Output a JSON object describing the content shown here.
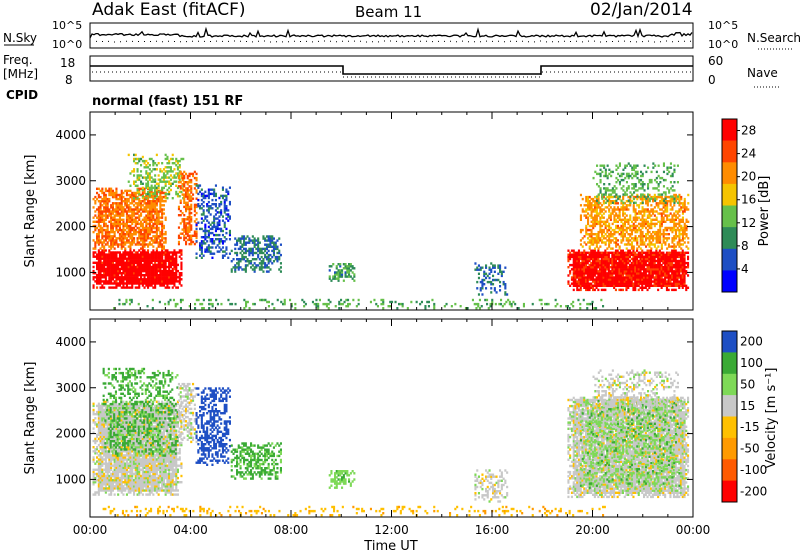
{
  "header": {
    "station": "Adak East (fitACF)",
    "beam": "Beam 11",
    "date": "02/Jan/2014"
  },
  "noise_panel": {
    "left_label": "N.Sky",
    "left_ticks": [
      "10^5",
      "10^0"
    ],
    "right_label": "N.Search",
    "right_ticks": [
      "10^5",
      "10^0"
    ]
  },
  "freq_panel": {
    "left_label": "Freq.",
    "left_unit": "[MHz]",
    "left_ticks": [
      "18",
      "8"
    ],
    "right_label": "Nave",
    "right_ticks": [
      "60",
      "0"
    ]
  },
  "cpid": {
    "label": "CPID",
    "value": "normal (fast) 151 RF"
  },
  "colors": {
    "power": [
      "#0000ff",
      "#1e4fc4",
      "#2e8b57",
      "#66c04a",
      "#f5c400",
      "#ff8c00",
      "#ff4500",
      "#ff0000"
    ],
    "velocity": [
      "#ff0000",
      "#ff5a00",
      "#ff9a00",
      "#ffc000",
      "#c8c8c8",
      "#7ed957",
      "#3aaa35",
      "#1e4fc4"
    ]
  },
  "chart_data": [
    {
      "type": "heatmap",
      "name": "power",
      "ylabel": "Slant Range [km]",
      "ylim": [
        180,
        4500
      ],
      "yticks": [
        1000,
        2000,
        3000,
        4000
      ],
      "xlim": [
        0,
        24
      ],
      "xticks": [
        "00:00",
        "04:00",
        "08:00",
        "12:00",
        "16:00",
        "20:00",
        "00:00"
      ],
      "colorbar_label": "Power [dB]",
      "colorbar_ticks": [
        4,
        8,
        12,
        16,
        20,
        24,
        28
      ],
      "colorbar_range": [
        0,
        30
      ],
      "regions": [
        {
          "t0": 0.1,
          "t1": 3.6,
          "r0": 650,
          "r1": 1500,
          "level": 29,
          "density": 0.95
        },
        {
          "t0": 0.1,
          "t1": 3.0,
          "r0": 1500,
          "r1": 2850,
          "level": 22,
          "density": 0.75
        },
        {
          "t0": 1.5,
          "t1": 3.7,
          "r0": 2600,
          "r1": 3550,
          "level": 14,
          "density": 0.4
        },
        {
          "t0": 3.5,
          "t1": 4.2,
          "r0": 1600,
          "r1": 3200,
          "level": 23,
          "density": 0.65
        },
        {
          "t0": 4.2,
          "t1": 5.6,
          "r0": 1300,
          "r1": 2900,
          "level": 6,
          "density": 0.45
        },
        {
          "t0": 5.6,
          "t1": 7.6,
          "r0": 1000,
          "r1": 1800,
          "level": 8,
          "density": 0.55
        },
        {
          "t0": 9.5,
          "t1": 10.5,
          "r0": 800,
          "r1": 1200,
          "level": 10,
          "density": 0.6
        },
        {
          "t0": 15.3,
          "t1": 16.6,
          "r0": 500,
          "r1": 1200,
          "level": 7,
          "density": 0.35
        },
        {
          "t0": 0.5,
          "t1": 20.5,
          "r0": 200,
          "r1": 400,
          "level": 12,
          "density": 0.25
        },
        {
          "t0": 19.0,
          "t1": 23.8,
          "r0": 600,
          "r1": 1500,
          "level": 28,
          "density": 0.95
        },
        {
          "t0": 19.5,
          "t1": 23.8,
          "r0": 1500,
          "r1": 2700,
          "level": 20,
          "density": 0.6
        },
        {
          "t0": 20.0,
          "t1": 23.4,
          "r0": 2500,
          "r1": 3400,
          "level": 12,
          "density": 0.3
        }
      ]
    },
    {
      "type": "heatmap",
      "name": "velocity",
      "ylabel": "Slant Range [km]",
      "xlabel": "Time UT",
      "ylim": [
        180,
        4500
      ],
      "yticks": [
        1000,
        2000,
        3000,
        4000
      ],
      "xlim": [
        0,
        24
      ],
      "xticks": [
        "00:00",
        "04:00",
        "08:00",
        "12:00",
        "16:00",
        "20:00",
        "00:00"
      ],
      "colorbar_label": "Velocity [m s⁻¹]",
      "colorbar_ticks": [
        200,
        100,
        50,
        15,
        -15,
        -50,
        -100,
        -200
      ],
      "regions": [
        {
          "t0": 0.1,
          "t1": 3.6,
          "r0": 650,
          "r1": 2700,
          "level": 0,
          "density": 0.9
        },
        {
          "t0": 0.5,
          "t1": 3.5,
          "r0": 1500,
          "r1": 3400,
          "level": 60,
          "density": 0.35
        },
        {
          "t0": 3.5,
          "t1": 4.2,
          "r0": 1800,
          "r1": 3100,
          "level": 0,
          "density": 0.6
        },
        {
          "t0": 4.2,
          "t1": 5.6,
          "r0": 1300,
          "r1": 3000,
          "level": 150,
          "density": 0.5
        },
        {
          "t0": 5.6,
          "t1": 7.6,
          "r0": 1000,
          "r1": 1800,
          "level": 60,
          "density": 0.55
        },
        {
          "t0": 9.5,
          "t1": 10.5,
          "r0": 800,
          "r1": 1200,
          "level": 40,
          "density": 0.6
        },
        {
          "t0": 15.3,
          "t1": 16.6,
          "r0": 500,
          "r1": 1200,
          "level": 0,
          "density": 0.4
        },
        {
          "t0": 0.5,
          "t1": 20.5,
          "r0": 200,
          "r1": 400,
          "level": -40,
          "density": 0.25
        },
        {
          "t0": 19.0,
          "t1": 23.8,
          "r0": 600,
          "r1": 2800,
          "level": 0,
          "density": 0.9
        },
        {
          "t0": 19.5,
          "t1": 23.5,
          "r0": 800,
          "r1": 2700,
          "level": 40,
          "density": 0.3
        },
        {
          "t0": 20.0,
          "t1": 23.4,
          "r0": 2500,
          "r1": 3400,
          "level": 0,
          "density": 0.3
        }
      ]
    }
  ],
  "x_axis_label": "Time UT"
}
